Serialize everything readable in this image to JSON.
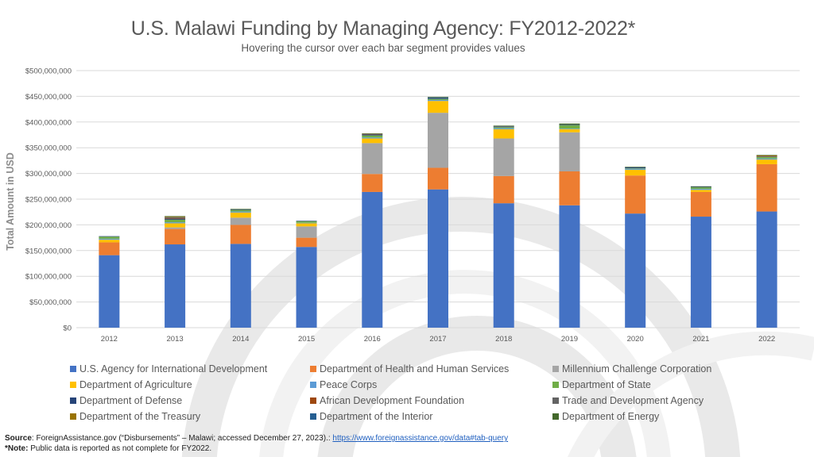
{
  "title": "U.S. Malawi Funding by Managing Agency: FY2012-2022*",
  "subtitle": "Hovering the cursor over each bar segment provides values",
  "source": {
    "label": "Source",
    "text": ": ForeignAssistance.gov (“Disbursements” – Malawi; accessed December 27, 2023).:",
    "link": "https://www.foreignassistance.gov/data#tab-query"
  },
  "note": {
    "label": "*Note:",
    "text": " Public data is reported as not complete for FY2022."
  },
  "chart_data": {
    "type": "bar",
    "stacked": true,
    "title": "U.S. Malawi Funding by Managing Agency: FY2012-2022*",
    "subtitle": "Hovering the cursor over each bar segment provides values",
    "ylabel": "Total Amount in USD",
    "xlabel": "",
    "ylim": [
      0,
      500000000
    ],
    "yticks": [
      0,
      50000000,
      100000000,
      150000000,
      200000000,
      250000000,
      300000000,
      350000000,
      400000000,
      450000000,
      500000000
    ],
    "ytick_labels": [
      "$0",
      "$50,000,000",
      "$100,000,000",
      "$150,000,000",
      "$200,000,000",
      "$250,000,000",
      "$300,000,000",
      "$350,000,000",
      "$400,000,000",
      "$450,000,000",
      "$500,000,000"
    ],
    "grid": true,
    "legend_position": "bottom",
    "categories": [
      "2012",
      "2013",
      "2014",
      "2015",
      "2016",
      "2017",
      "2018",
      "2019",
      "2020",
      "2021",
      "2022"
    ],
    "series": [
      {
        "name": "U.S. Agency for International Development",
        "color": "#4472c4",
        "values": [
          141000000,
          162000000,
          163000000,
          157000000,
          264000000,
          269000000,
          242000000,
          238000000,
          222000000,
          216000000,
          226000000
        ]
      },
      {
        "name": "Department of Health and Human Services",
        "color": "#ed7d31",
        "values": [
          25000000,
          30000000,
          37000000,
          18000000,
          35000000,
          42000000,
          53000000,
          66000000,
          74000000,
          48000000,
          92000000
        ]
      },
      {
        "name": "Millennium Challenge Corporation",
        "color": "#a5a5a5",
        "values": [
          0,
          3000000,
          14000000,
          22000000,
          60000000,
          107000000,
          73000000,
          76000000,
          0,
          0,
          0
        ]
      },
      {
        "name": "Department of Agriculture",
        "color": "#ffc000",
        "values": [
          5000000,
          8000000,
          10000000,
          6000000,
          9000000,
          23000000,
          18000000,
          6000000,
          11000000,
          4000000,
          9000000
        ]
      },
      {
        "name": "Peace Corps",
        "color": "#5b9bd5",
        "values": [
          2000000,
          2000000,
          2000000,
          1000000,
          2000000,
          2000000,
          2000000,
          1000000,
          2000000,
          2000000,
          2000000
        ]
      },
      {
        "name": "Department of State",
        "color": "#70ad47",
        "values": [
          4000000,
          5000000,
          3000000,
          3000000,
          4000000,
          2000000,
          2000000,
          7000000,
          1000000,
          3000000,
          3000000
        ]
      },
      {
        "name": "Department of Defense",
        "color": "#264478",
        "values": [
          1000000,
          2000000,
          1000000,
          1000000,
          2000000,
          2000000,
          1000000,
          1000000,
          2000000,
          1000000,
          1000000
        ]
      },
      {
        "name": "African Development Foundation",
        "color": "#9e480e",
        "values": [
          0,
          1000000,
          0,
          0,
          1000000,
          0,
          0,
          0,
          0,
          0,
          1000000
        ]
      },
      {
        "name": "Trade and Development Agency",
        "color": "#636363",
        "values": [
          0,
          2000000,
          0,
          0,
          0,
          0,
          1000000,
          0,
          0,
          0,
          0
        ]
      },
      {
        "name": "Department of the Treasury",
        "color": "#997300",
        "values": [
          0,
          1000000,
          0,
          0,
          0,
          0,
          0,
          0,
          0,
          0,
          1000000
        ]
      },
      {
        "name": "Department of the Interior",
        "color": "#255e91",
        "values": [
          0,
          0,
          0,
          0,
          0,
          1000000,
          0,
          0,
          0,
          0,
          0
        ]
      },
      {
        "name": "Department of Energy",
        "color": "#43682b",
        "values": [
          0,
          1000000,
          1000000,
          0,
          1000000,
          1000000,
          1000000,
          2000000,
          1000000,
          1000000,
          1000000
        ]
      }
    ]
  }
}
